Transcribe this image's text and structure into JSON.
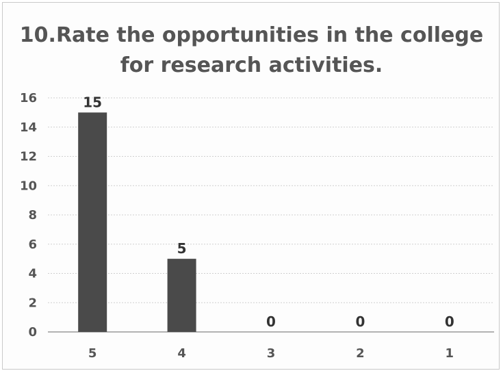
{
  "chart_data": {
    "type": "bar",
    "title_lines": [
      "10.Rate the opportunities in the college",
      "for research activities."
    ],
    "categories": [
      "5",
      "4",
      "3",
      "2",
      "1"
    ],
    "values": [
      15,
      5,
      0,
      0,
      0
    ],
    "data_labels": [
      "15",
      "5",
      "0",
      "0",
      "0"
    ],
    "ylim": [
      0,
      16
    ],
    "yticks": [
      "0",
      "2",
      "4",
      "6",
      "8",
      "10",
      "12",
      "14",
      "16"
    ],
    "grid": true,
    "legend": "none",
    "bar_color": "#4a4a4a",
    "grid_color": "#cfcfcf"
  }
}
